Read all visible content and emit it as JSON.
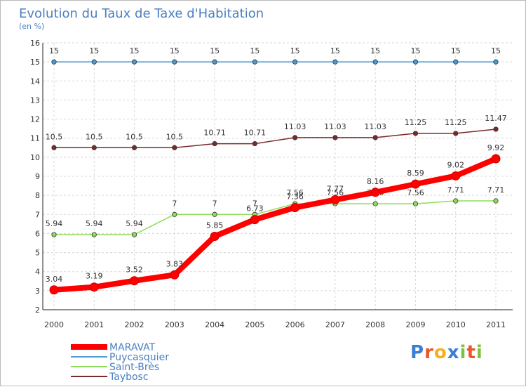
{
  "chart_data": {
    "type": "line",
    "title": "Evolution du Taux de Taxe d'Habitation",
    "subtitle": "(en %)",
    "x": [
      "2000",
      "2001",
      "2002",
      "2003",
      "2004",
      "2005",
      "2006",
      "2007",
      "2008",
      "2009",
      "2010",
      "2011"
    ],
    "ylim": [
      2,
      16
    ],
    "yticks": [
      2,
      3,
      4,
      5,
      6,
      7,
      8,
      9,
      10,
      11,
      12,
      13,
      14,
      15,
      16
    ],
    "grid": true,
    "legend_position": "bottom-left",
    "series": [
      {
        "name": "MARAVAT",
        "color": "#ff0000",
        "values": [
          3.04,
          3.19,
          3.52,
          3.83,
          5.85,
          6.73,
          7.36,
          7.77,
          8.16,
          8.59,
          9.02,
          9.92
        ],
        "labels": [
          "3.04",
          "3.19",
          "3.52",
          "3.83",
          "5.85",
          "6.73",
          "7.36",
          "7.77",
          "8.16",
          "8.59",
          "9.02",
          "9.92"
        ]
      },
      {
        "name": "Puycasquier",
        "color": "#4b9bd1",
        "values": [
          15,
          15,
          15,
          15,
          15,
          15,
          15,
          15,
          15,
          15,
          15,
          15
        ],
        "labels": [
          "15",
          "15",
          "15",
          "15",
          "15",
          "15",
          "15",
          "15",
          "15",
          "15",
          "15",
          "15"
        ]
      },
      {
        "name": "Saint-Brès",
        "color": "#8fdc5a",
        "values": [
          5.94,
          5.94,
          5.94,
          7,
          7,
          7,
          7.56,
          7.56,
          7.56,
          7.56,
          7.71,
          7.71
        ],
        "labels": [
          "5.94",
          "5.94",
          "5.94",
          "7",
          "7",
          "7",
          "7.56",
          "7.56",
          "7.56",
          "7.56",
          "7.71",
          "7.71"
        ]
      },
      {
        "name": "Tayb​osc",
        "color": "#7a2a2a",
        "values": [
          10.5,
          10.5,
          10.5,
          10.5,
          10.71,
          10.71,
          11.03,
          11.03,
          11.03,
          11.25,
          11.25,
          11.47
        ],
        "labels": [
          "10.5",
          "10.5",
          "10.5",
          "10.5",
          "10.71",
          "10.71",
          "11.03",
          "11.03",
          "11.03",
          "11.25",
          "11.25",
          "11.47"
        ]
      }
    ]
  },
  "logo": {
    "letters": [
      {
        "char": "P",
        "color": "#3a7fd5"
      },
      {
        "char": "r",
        "color": "#e8562a"
      },
      {
        "char": "o",
        "color": "#f2b01e"
      },
      {
        "char": "x",
        "color": "#3a7fd5"
      },
      {
        "char": "i",
        "color": "#7cc242"
      },
      {
        "char": "t",
        "color": "#e8562a"
      },
      {
        "char": "i",
        "color": "#7cc242"
      }
    ]
  }
}
